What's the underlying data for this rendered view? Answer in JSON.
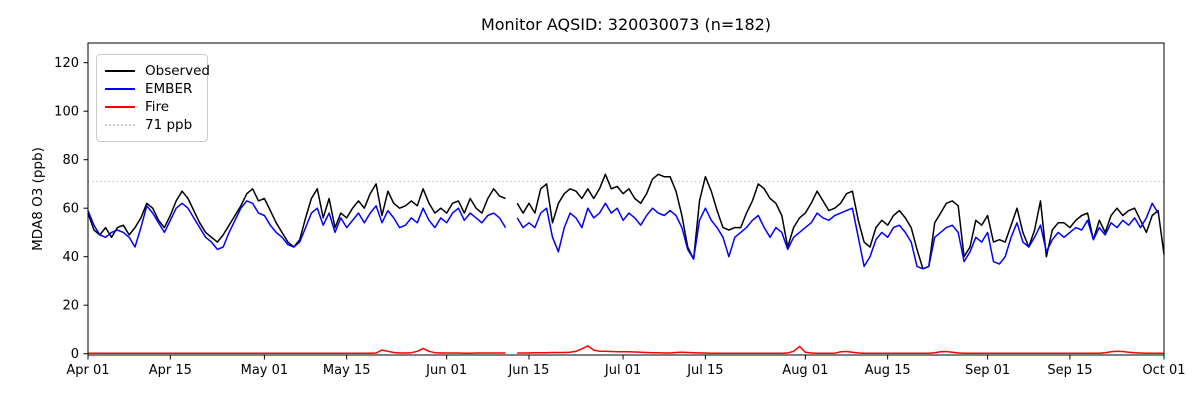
{
  "title": "Monitor AQSID: 320030073 (n=182)",
  "ylabel": "MDA8 O3 (ppb)",
  "legend": {
    "items": [
      {
        "label": "Observed",
        "color": "#000000",
        "style": "solid"
      },
      {
        "label": "EMBER",
        "color": "#0000ff",
        "style": "solid"
      },
      {
        "label": "Fire",
        "color": "#ff0000",
        "style": "solid"
      },
      {
        "label": "71 ppb",
        "color": "#c8c8c8",
        "style": "dotted"
      }
    ]
  },
  "chart_data": {
    "type": "line",
    "title": "Monitor AQSID: 320030073 (n=182)",
    "xlabel": "",
    "ylabel": "MDA8 O3 (ppb)",
    "n_label": 182,
    "grid": false,
    "legend_position": "upper left",
    "x_unit": "day index from Apr 01",
    "n_days": 184,
    "missing_day_index": 72,
    "x_tick_days": [
      0,
      14,
      30,
      44,
      61,
      75,
      91,
      105,
      122,
      136,
      153,
      167,
      183
    ],
    "x_tick_labels": [
      "Apr 01",
      "Apr 15",
      "May 01",
      "May 15",
      "Jun 01",
      "Jun 15",
      "Jul 01",
      "Jul 15",
      "Aug 01",
      "Aug 15",
      "Sep 01",
      "Sep 15",
      "Oct 01"
    ],
    "y_ticks": [
      0,
      20,
      40,
      60,
      80,
      100,
      120
    ],
    "ylim": [
      -0.5,
      128
    ],
    "threshold": {
      "value": 71,
      "label": "71 ppb",
      "color": "#c8c8c8",
      "style": "dotted"
    },
    "series": [
      {
        "name": "Observed",
        "color": "#000000",
        "values": [
          58,
          51,
          49,
          52,
          48,
          52,
          53,
          49,
          52,
          56,
          62,
          60,
          55,
          52,
          57,
          63,
          67,
          64,
          59,
          54,
          50,
          48,
          46,
          49,
          53,
          57,
          61,
          66,
          68,
          63,
          64,
          59,
          54,
          50,
          46,
          44,
          47,
          56,
          64,
          68,
          56,
          64,
          52,
          58,
          56,
          60,
          63,
          60,
          66,
          70,
          57,
          67,
          62,
          60,
          61,
          63,
          61,
          68,
          62,
          58,
          60,
          58,
          62,
          63,
          58,
          64,
          60,
          58,
          64,
          68,
          65,
          64,
          null,
          62,
          58,
          62,
          58,
          68,
          70,
          54,
          62,
          66,
          68,
          67,
          64,
          68,
          64,
          68,
          74,
          68,
          69,
          66,
          68,
          64,
          62,
          66,
          72,
          74,
          73,
          73,
          67,
          57,
          44,
          39,
          63,
          73,
          67,
          59,
          52,
          51,
          52,
          52,
          58,
          63,
          70,
          68,
          64,
          62,
          57,
          44,
          52,
          56,
          58,
          62,
          67,
          63,
          59,
          60,
          62,
          66,
          67,
          55,
          46,
          44,
          52,
          55,
          53,
          57,
          59,
          56,
          52,
          43,
          35,
          36,
          54,
          58,
          62,
          63,
          61,
          40,
          44,
          55,
          53,
          57,
          46,
          47,
          46,
          53,
          60,
          50,
          44,
          51,
          63,
          40,
          51,
          54,
          54,
          52,
          55,
          57,
          58,
          47,
          55,
          50,
          57,
          60,
          57,
          59,
          60,
          55,
          50,
          57,
          59,
          41
        ]
      },
      {
        "name": "EMBER",
        "color": "#0000ff",
        "values": [
          59,
          53,
          49,
          48,
          50,
          51,
          50,
          48,
          44,
          52,
          61,
          58,
          54,
          50,
          55,
          60,
          62,
          60,
          56,
          52,
          48,
          46,
          43,
          44,
          50,
          55,
          60,
          63,
          62,
          58,
          57,
          53,
          50,
          48,
          45,
          44,
          46,
          52,
          58,
          60,
          53,
          58,
          50,
          56,
          52,
          55,
          58,
          54,
          58,
          61,
          54,
          59,
          56,
          52,
          53,
          56,
          54,
          60,
          55,
          52,
          56,
          54,
          58,
          60,
          55,
          58,
          56,
          54,
          57,
          58,
          56,
          52,
          null,
          56,
          52,
          54,
          52,
          58,
          60,
          48,
          42,
          52,
          58,
          56,
          52,
          60,
          56,
          58,
          62,
          58,
          60,
          55,
          58,
          56,
          53,
          57,
          60,
          58,
          57,
          59,
          57,
          52,
          43,
          39,
          55,
          60,
          55,
          52,
          48,
          40,
          48,
          50,
          52,
          55,
          57,
          52,
          48,
          52,
          50,
          43,
          48,
          50,
          52,
          54,
          58,
          56,
          55,
          57,
          58,
          59,
          60,
          48,
          36,
          40,
          47,
          50,
          48,
          52,
          53,
          50,
          46,
          36,
          35,
          36,
          48,
          50,
          52,
          53,
          50,
          38,
          42,
          48,
          46,
          50,
          38,
          37,
          40,
          48,
          54,
          46,
          44,
          48,
          53,
          42,
          47,
          50,
          48,
          50,
          52,
          51,
          55,
          47,
          52,
          49,
          54,
          52,
          55,
          53,
          56,
          52,
          56,
          62,
          58,
          null
        ]
      },
      {
        "name": "Fire",
        "color": "#ff0000",
        "values": [
          0.2,
          0.2,
          0.2,
          0.2,
          0.2,
          0.2,
          0.2,
          0.2,
          0.2,
          0.2,
          0.2,
          0.2,
          0.2,
          0.2,
          0.2,
          0.2,
          0.2,
          0.2,
          0.2,
          0.2,
          0.2,
          0.2,
          0.2,
          0.2,
          0.2,
          0.2,
          0.2,
          0.2,
          0.2,
          0.2,
          0.2,
          0.2,
          0.2,
          0.2,
          0.2,
          0.2,
          0.2,
          0.2,
          0.2,
          0.2,
          0.2,
          0.2,
          0.2,
          0.2,
          0.2,
          0.2,
          0.2,
          0.2,
          0.2,
          0.3,
          1.5,
          1.0,
          0.5,
          0.3,
          0.3,
          0.4,
          1.0,
          2.2,
          1.0,
          0.4,
          0.3,
          0.3,
          0.3,
          0.3,
          0.2,
          0.2,
          0.3,
          0.3,
          0.3,
          0.3,
          0.3,
          0.3,
          null,
          0.3,
          0.3,
          0.3,
          0.4,
          0.4,
          0.4,
          0.5,
          0.5,
          0.5,
          0.6,
          1.0,
          2.0,
          3.2,
          1.5,
          1.0,
          1.0,
          0.9,
          0.8,
          0.8,
          0.8,
          0.7,
          0.6,
          0.5,
          0.4,
          0.4,
          0.3,
          0.3,
          0.5,
          0.6,
          0.5,
          0.4,
          0.3,
          0.3,
          0.2,
          0.2,
          0.2,
          0.2,
          0.2,
          0.2,
          0.2,
          0.2,
          0.2,
          0.2,
          0.2,
          0.2,
          0.2,
          0.3,
          1.0,
          3.0,
          0.6,
          0.3,
          0.2,
          0.2,
          0.2,
          0.2,
          0.8,
          0.9,
          0.6,
          0.3,
          0.2,
          0.2,
          0.2,
          0.2,
          0.2,
          0.2,
          0.2,
          0.2,
          0.2,
          0.2,
          0.2,
          0.2,
          0.4,
          0.8,
          0.9,
          0.6,
          0.3,
          0.2,
          0.2,
          0.2,
          0.2,
          0.2,
          0.2,
          0.2,
          0.2,
          0.2,
          0.2,
          0.2,
          0.2,
          0.2,
          0.2,
          0.2,
          0.2,
          0.2,
          0.2,
          0.2,
          0.2,
          0.2,
          0.2,
          0.2,
          0.2,
          0.4,
          0.8,
          1.0,
          0.9,
          0.6,
          0.4,
          0.3,
          0.2,
          0.2,
          0.2,
          0.2
        ]
      }
    ]
  }
}
